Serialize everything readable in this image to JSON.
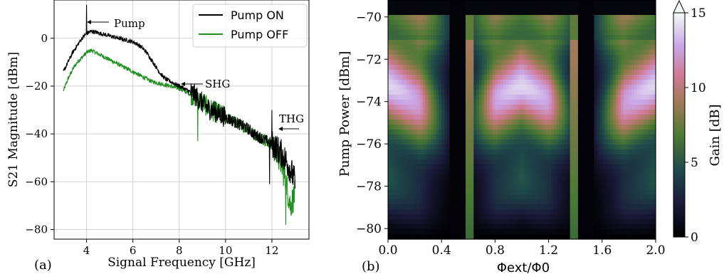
{
  "panels": {
    "a": {
      "panel_label": "(a)",
      "annotations": {
        "pump": "Pump",
        "shg": "SHG",
        "thg": "THG"
      }
    },
    "b": {
      "panel_label": "(b)",
      "colorbar_label": "Gain [dB]"
    }
  },
  "chart_data": [
    {
      "type": "line",
      "xlabel": "Signal Frequency [GHz]",
      "ylabel": "S21 Magnitude [dBm]",
      "xlim": [
        2.6,
        13.6
      ],
      "ylim": [
        -84,
        16
      ],
      "xticks": [
        4,
        6,
        8,
        10,
        12
      ],
      "yticks": [
        0,
        -20,
        -40,
        -60,
        -80
      ],
      "grid": true,
      "legend_position": "top-right",
      "series": [
        {
          "name": "Pump ON",
          "color": "#000000",
          "x": [
            3.0,
            3.2,
            3.4,
            3.6,
            3.8,
            4.0,
            4.2,
            4.4,
            4.6,
            4.8,
            5.0,
            5.2,
            5.4,
            5.6,
            5.8,
            6.0,
            6.2,
            6.4,
            6.6,
            6.8,
            7.0,
            7.2,
            7.4,
            7.6,
            7.8,
            8.0,
            8.2,
            8.4,
            8.6,
            8.8,
            9.0,
            9.2,
            9.4,
            9.6,
            9.8,
            10.0,
            10.2,
            10.4,
            10.6,
            10.8,
            11.0,
            11.2,
            11.4,
            11.6,
            11.8,
            12.0,
            12.2,
            12.4,
            12.6,
            12.8,
            13.0
          ],
          "y": [
            -14,
            -10,
            -6,
            -3,
            0,
            2,
            3,
            2.5,
            2,
            1.5,
            1,
            0.5,
            0,
            -0.5,
            -1,
            -1.5,
            -2.5,
            -4,
            -6,
            -9,
            -12,
            -15,
            -17,
            -18,
            -19,
            -20,
            -21,
            -22,
            -23,
            -25,
            -27,
            -29,
            -30,
            -31,
            -32,
            -33,
            -34,
            -35,
            -36,
            -37,
            -38,
            -40,
            -41,
            -42,
            -43,
            -44,
            -46,
            -48,
            -51,
            -55,
            -60
          ],
          "spikes": [
            {
              "x": 4.0,
              "y": 14
            },
            {
              "x": 8.0,
              "y": -19
            },
            {
              "x": 12.0,
              "y": -30
            },
            {
              "x": 11.9,
              "y": -61
            }
          ]
        },
        {
          "name": "Pump OFF",
          "color": "#1f8f1f",
          "x": [
            3.0,
            3.2,
            3.4,
            3.6,
            3.8,
            4.0,
            4.2,
            4.4,
            4.6,
            4.8,
            5.0,
            5.2,
            5.4,
            5.6,
            5.8,
            6.0,
            6.2,
            6.4,
            6.6,
            6.8,
            7.0,
            7.2,
            7.4,
            7.6,
            7.8,
            8.0,
            8.2,
            8.4,
            8.6,
            8.8,
            9.0,
            9.2,
            9.4,
            9.6,
            9.8,
            10.0,
            10.2,
            10.4,
            10.6,
            10.8,
            11.0,
            11.2,
            11.4,
            11.6,
            11.8,
            12.0,
            12.2,
            12.4,
            12.6,
            12.8,
            13.0
          ],
          "y": [
            -22,
            -17,
            -13,
            -10,
            -8,
            -6,
            -5,
            -6,
            -7,
            -8,
            -9,
            -10,
            -11,
            -12,
            -13,
            -14,
            -15,
            -16,
            -17,
            -18,
            -18.5,
            -19,
            -19.5,
            -20,
            -20.5,
            -21,
            -22,
            -23,
            -24,
            -25.5,
            -27,
            -28.5,
            -30,
            -31,
            -32,
            -33,
            -34,
            -35,
            -36,
            -37,
            -38,
            -40,
            -41,
            -42,
            -43,
            -45,
            -47,
            -52,
            -60,
            -70,
            -65
          ],
          "spikes": [
            {
              "x": 8.8,
              "y": -43
            },
            {
              "x": 12.6,
              "y": -78
            }
          ]
        }
      ]
    },
    {
      "type": "heatmap",
      "xlabel": "Φext/Φ0",
      "ylabel": "Pump Power [dBm]",
      "xlim": [
        0.0,
        2.0
      ],
      "ylim": [
        -80.5,
        -69.2
      ],
      "xticks": [
        0.0,
        0.4,
        0.8,
        1.2,
        1.6,
        2.0
      ],
      "xtick_labels": [
        "0.0",
        "0.4",
        "0.8",
        "1.2",
        "1.6",
        "2.0"
      ],
      "yticks": [
        -70,
        -72,
        -74,
        -76,
        -78,
        -80
      ],
      "colorbar": {
        "range": [
          0,
          15
        ],
        "ticks": [
          0,
          5,
          10,
          15
        ],
        "extend": "max",
        "colormap": "cubehelix"
      },
      "model": "gain(phi, p) peaks in lobes centred near phi=0.2, 1.0, 1.8; dark minima near phi=0.5, 1.5",
      "note": "Gain [dB] vs external flux and pump power"
    }
  ]
}
